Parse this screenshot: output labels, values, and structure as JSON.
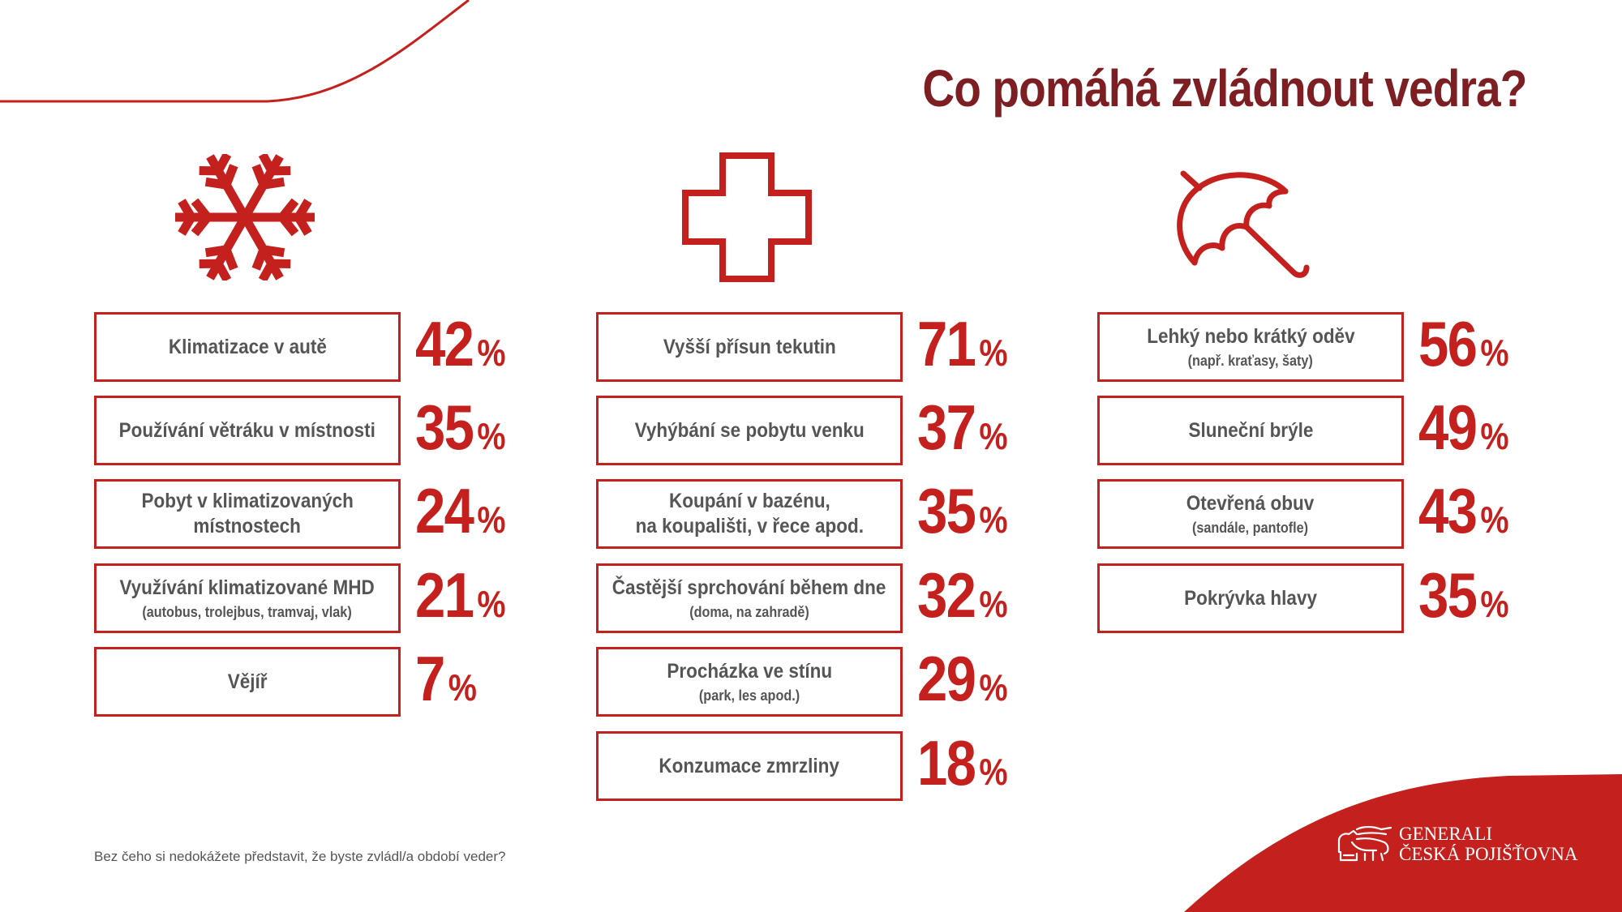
{
  "title": "Co pomáhá zvládnout vedra?",
  "columns": [
    {
      "icon": "snowflake-icon",
      "items": [
        {
          "label": "Klimatizace v autě",
          "label2": "",
          "sub": "",
          "value": "42",
          "unit": "%"
        },
        {
          "label": "Používání větráku v místnosti",
          "label2": "",
          "sub": "",
          "value": "35",
          "unit": "%"
        },
        {
          "label": "Pobyt v klimatizovaných",
          "label2": "místnostech",
          "sub": "",
          "value": "24",
          "unit": "%"
        },
        {
          "label": "Využívání klimatizované MHD",
          "label2": "",
          "sub": "(autobus, trolejbus, tramvaj, vlak)",
          "value": "21",
          "unit": "%"
        },
        {
          "label": "Vějíř",
          "label2": "",
          "sub": "",
          "value": "7",
          "unit": "%"
        }
      ]
    },
    {
      "icon": "medical-cross-icon",
      "items": [
        {
          "label": "Vyšší přísun tekutin",
          "label2": "",
          "sub": "",
          "value": "71",
          "unit": "%"
        },
        {
          "label": "Vyhýbání se pobytu venku",
          "label2": "",
          "sub": "",
          "value": "37",
          "unit": "%"
        },
        {
          "label": "Koupání v bazénu,",
          "label2": "na koupališti, v řece apod.",
          "sub": "",
          "value": "35",
          "unit": "%"
        },
        {
          "label": "Častější sprchování během dne",
          "label2": "",
          "sub": "(doma, na zahradě)",
          "value": "32",
          "unit": "%"
        },
        {
          "label": "Procházka ve stínu",
          "label2": "",
          "sub": "(park, les apod.)",
          "value": "29",
          "unit": "%"
        },
        {
          "label": "Konzumace zmrzliny",
          "label2": "",
          "sub": "",
          "value": "18",
          "unit": "%"
        }
      ]
    },
    {
      "icon": "umbrella-icon",
      "items": [
        {
          "label": "Lehký nebo krátký oděv",
          "label2": "",
          "sub": "(např. kraťasy, šaty)",
          "value": "56",
          "unit": "%"
        },
        {
          "label": "Sluneční brýle",
          "label2": "",
          "sub": "",
          "value": "49",
          "unit": "%"
        },
        {
          "label": "Otevřená obuv",
          "label2": "",
          "sub": "(sandále, pantofle)",
          "value": "43",
          "unit": "%"
        },
        {
          "label": "Pokrývka hlavy",
          "label2": "",
          "sub": "",
          "value": "35",
          "unit": "%"
        }
      ]
    }
  ],
  "footnote": "Bez čeho si nedokážete představit, že byste zvládl/a období veder?",
  "logo": {
    "line1": "GENERALI",
    "line2": "ČESKÁ POJIŠŤOVNA"
  },
  "colors": {
    "accent": "#c4211e",
    "title": "#7c1e22",
    "text": "#555555"
  }
}
